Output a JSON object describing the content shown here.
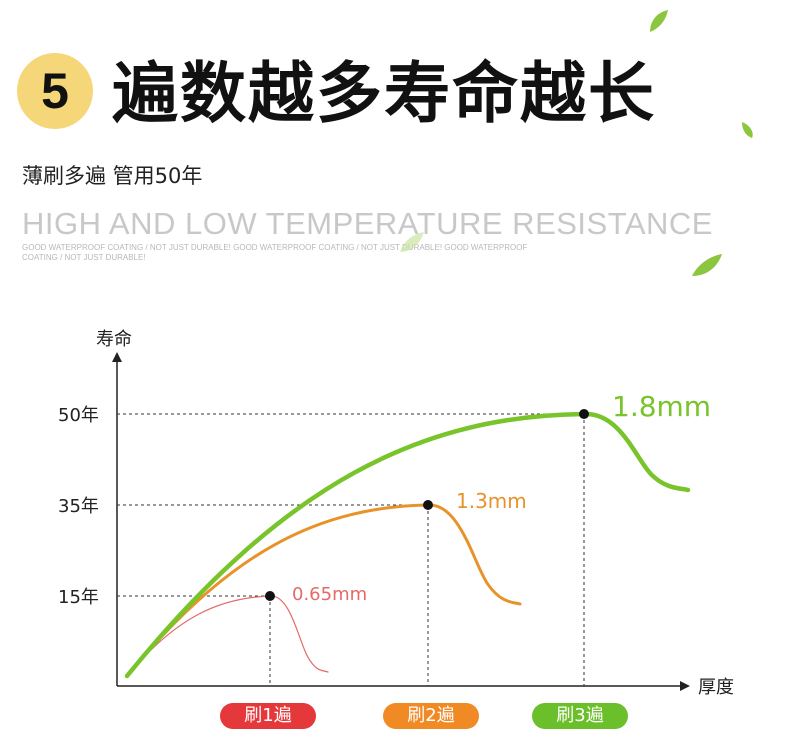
{
  "header": {
    "badge_number": "5",
    "title": "遍数越多寿命越长",
    "subtitle": "薄刷多遍 管用50年",
    "english_title": "HIGH AND LOW TEMPERATURE RESISTANCE",
    "english_small": "GOOD WATERPROOF COATING / NOT JUST DURABLE! GOOD WATERPROOF COATING / NOT JUST DURABLE! GOOD WATERPROOF COATING / NOT JUST DURABLE!"
  },
  "colors": {
    "badge": "#f5d77a",
    "leaf": "#8cc63f",
    "series_1": "#e46a6a",
    "series_2": "#e8922a",
    "series_3": "#78c42a",
    "pill_1": "#e5383b",
    "pill_2": "#f08a24",
    "pill_3": "#6abf2a"
  },
  "chart_data": {
    "type": "line",
    "ylabel": "寿命",
    "xlabel": "厚度",
    "y_ticks": [
      {
        "value": 15,
        "label": "15年"
      },
      {
        "value": 35,
        "label": "35年"
      },
      {
        "value": 50,
        "label": "50年"
      }
    ],
    "ylim": [
      0,
      62
    ],
    "series": [
      {
        "label": "0.65mm",
        "category": "刷1遍",
        "peak_years": 15
      },
      {
        "label": "1.3mm",
        "category": "刷2遍",
        "peak_years": 35
      },
      {
        "label": "1.8mm",
        "category": "刷3遍",
        "peak_years": 50
      }
    ],
    "grid": false,
    "legend": "none"
  }
}
